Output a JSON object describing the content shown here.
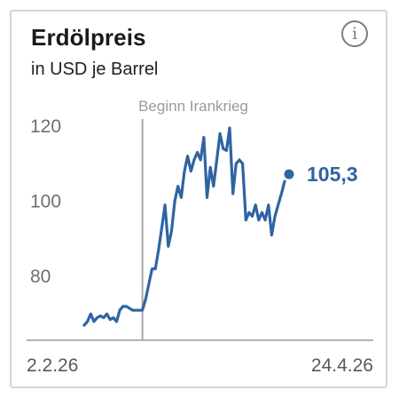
{
  "header": {
    "title": "Erdölpreis",
    "subtitle": "in USD je Barrel",
    "info_label": "i"
  },
  "colors": {
    "line": "#2f64a3",
    "annotation": "#a6a6a6",
    "axis": "#9a9a9a"
  },
  "chart_data": {
    "type": "line",
    "title": "Erdölpreis",
    "subtitle": "in USD je Barrel",
    "xlabel": "",
    "ylabel": "",
    "yticks": [
      120,
      100,
      80
    ],
    "ytick_labels": [
      "120",
      "100",
      "80"
    ],
    "ylim": [
      63,
      124
    ],
    "x_start_label": "2.2.26",
    "x_end_label": "24.4.26",
    "grid": false,
    "annotation": {
      "label": "Beginn Irankrieg",
      "index": 18
    },
    "end_label": "105,3",
    "series": [
      {
        "values": [
          67.0,
          68.0,
          70.0,
          68.0,
          69.0,
          69.5,
          69.0,
          70.0,
          68.5,
          69.0,
          68.0,
          71.0,
          72.0,
          72.0,
          71.5,
          71.0,
          71.0,
          71.0,
          71.0,
          74.0,
          78.0,
          82.0,
          82.0,
          87.0,
          93.0,
          99.0,
          88.0,
          92.0,
          100.0,
          104.0,
          101.0,
          108.0,
          112.0,
          108.0,
          111.0,
          113.0,
          111.0,
          117.0,
          101.0,
          109.0,
          104.0,
          111.0,
          118.0,
          114.0,
          113.5,
          119.5,
          102.0,
          110.0,
          111.0,
          110.0,
          95.0,
          97.0,
          96.0,
          99.0,
          95.0,
          97.0,
          95.0,
          99.0,
          91.0,
          96.0,
          99.0,
          102.0,
          105.3
        ]
      }
    ]
  }
}
